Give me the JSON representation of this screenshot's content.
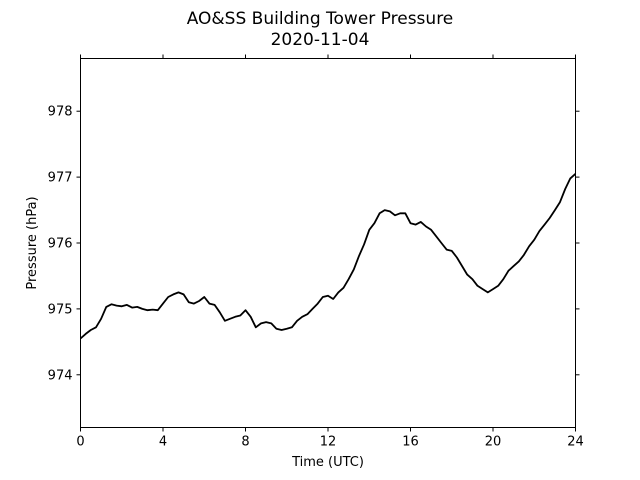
{
  "chart_data": {
    "type": "line",
    "title": "AO&SS Building Tower Pressure",
    "subtitle": "2020-11-04",
    "xlabel": "Time (UTC)",
    "ylabel": "Pressure (hPa)",
    "xlim": [
      0,
      24
    ],
    "ylim": [
      973.2,
      978.8
    ],
    "xticks": [
      0,
      4,
      8,
      12,
      16,
      20,
      24
    ],
    "yticks": [
      974,
      975,
      976,
      977,
      978
    ],
    "grid": false,
    "series": [
      {
        "color": "#000000",
        "x": [
          0,
          0.25,
          0.5,
          0.75,
          1.0,
          1.25,
          1.5,
          1.75,
          2.0,
          2.25,
          2.5,
          2.75,
          3.0,
          3.25,
          3.5,
          3.75,
          4.0,
          4.25,
          4.5,
          4.75,
          5.0,
          5.25,
          5.5,
          5.75,
          6.0,
          6.25,
          6.5,
          6.75,
          7.0,
          7.25,
          7.5,
          7.75,
          8.0,
          8.25,
          8.5,
          8.75,
          9.0,
          9.25,
          9.5,
          9.75,
          10.0,
          10.25,
          10.5,
          10.75,
          11.0,
          11.25,
          11.5,
          11.75,
          12.0,
          12.25,
          12.5,
          12.75,
          13.0,
          13.25,
          13.5,
          13.75,
          14.0,
          14.25,
          14.5,
          14.75,
          15.0,
          15.25,
          15.5,
          15.75,
          16.0,
          16.25,
          16.5,
          16.75,
          17.0,
          17.25,
          17.5,
          17.75,
          18.0,
          18.25,
          18.5,
          18.75,
          19.0,
          19.25,
          19.5,
          19.75,
          20.0,
          20.25,
          20.5,
          20.75,
          21.0,
          21.25,
          21.5,
          21.75,
          22.0,
          22.25,
          22.5,
          22.75,
          23.0,
          23.25,
          23.5,
          23.75,
          24.0
        ],
        "values": [
          974.55,
          974.62,
          974.68,
          974.72,
          974.85,
          975.03,
          975.07,
          975.05,
          975.04,
          975.06,
          975.02,
          975.03,
          975.0,
          974.98,
          974.99,
          974.98,
          975.08,
          975.18,
          975.22,
          975.25,
          975.22,
          975.1,
          975.08,
          975.12,
          975.18,
          975.08,
          975.06,
          974.95,
          974.82,
          974.85,
          974.88,
          974.9,
          974.98,
          974.88,
          974.72,
          974.78,
          974.8,
          974.78,
          974.7,
          974.68,
          974.7,
          974.72,
          974.82,
          974.88,
          974.92,
          975.0,
          975.08,
          975.18,
          975.2,
          975.15,
          975.25,
          975.32,
          975.45,
          975.6,
          975.8,
          975.98,
          976.2,
          976.3,
          976.45,
          976.5,
          976.48,
          976.42,
          976.45,
          976.45,
          976.3,
          976.28,
          976.32,
          976.25,
          976.2,
          976.1,
          976.0,
          975.9,
          975.88,
          975.78,
          975.65,
          975.52,
          975.45,
          975.35,
          975.3,
          975.25,
          975.3,
          975.35,
          975.45,
          975.58,
          975.65,
          975.72,
          975.82,
          975.95,
          976.05,
          976.18,
          976.28,
          976.38,
          976.5,
          976.62,
          976.82,
          976.98,
          977.05
        ]
      }
    ]
  }
}
